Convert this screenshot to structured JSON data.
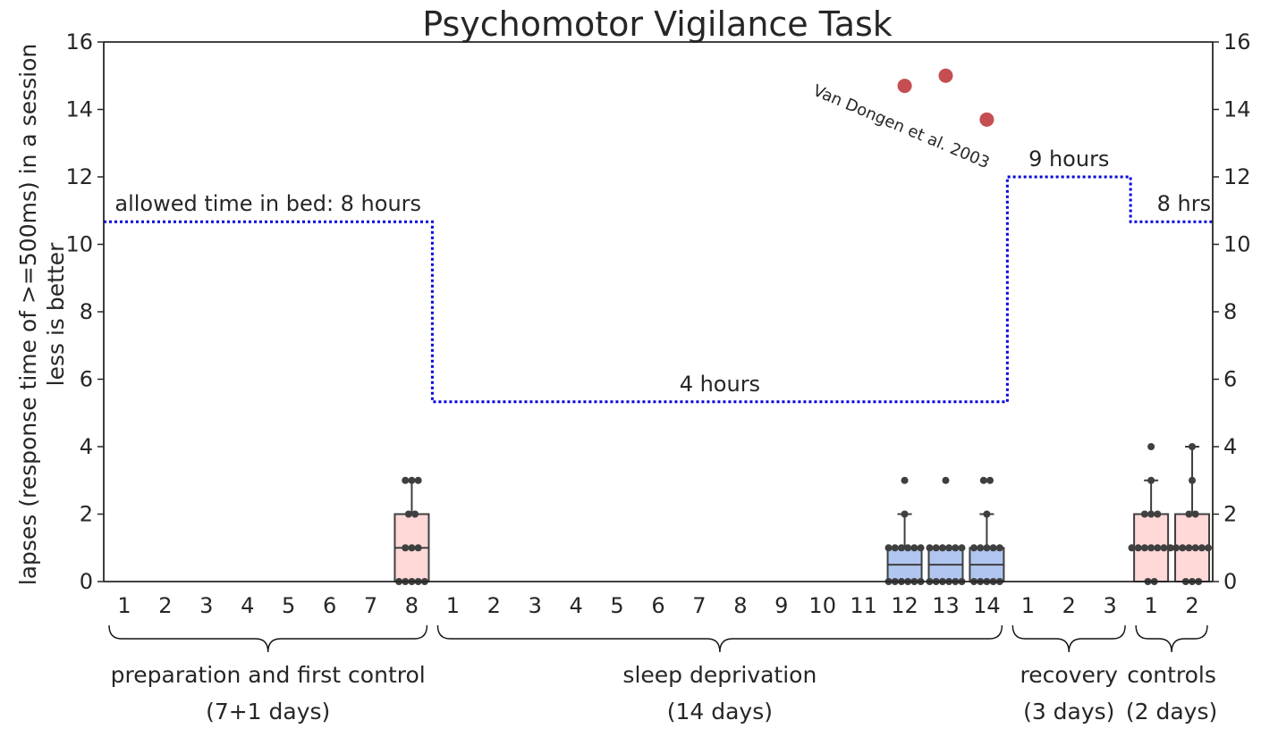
{
  "chart_data": {
    "type": "box",
    "title": "Psychomotor Vigilance Task",
    "ylabel_lines": [
      "lapses (response time of >=500ms) in a session",
      "less is better"
    ],
    "ylim": [
      0,
      16
    ],
    "yticks": [
      0,
      2,
      4,
      6,
      8,
      10,
      12,
      14,
      16
    ],
    "grid": false,
    "day_labels": [
      "1",
      "2",
      "3",
      "4",
      "5",
      "6",
      "7",
      "8",
      "1",
      "2",
      "3",
      "4",
      "5",
      "6",
      "7",
      "8",
      "9",
      "10",
      "11",
      "12",
      "13",
      "14",
      "1",
      "2",
      "3",
      "1",
      "2"
    ],
    "groups": [
      {
        "label": "preparation and first control",
        "sublabel": "(7+1 days)",
        "start": 0,
        "end": 7
      },
      {
        "label": "sleep deprivation",
        "sublabel": "(14 days)",
        "start": 8,
        "end": 21
      },
      {
        "label": "recovery",
        "sublabel": "(3 days)",
        "start": 22,
        "end": 24
      },
      {
        "label": "controls",
        "sublabel": "(2 days)",
        "start": 25,
        "end": 26
      }
    ],
    "boxes": [
      {
        "index": 7,
        "color": "#ffd8d8",
        "q1": 0,
        "median": 1,
        "q3": 2,
        "whisker_low": 0,
        "whisker_high": 3,
        "points": [
          0,
          0,
          0,
          0,
          0,
          1,
          1,
          1,
          2,
          2,
          3,
          3,
          3
        ]
      },
      {
        "index": 19,
        "color": "#b0c6f0",
        "q1": 0,
        "median": 0.5,
        "q3": 1,
        "whisker_low": 0,
        "whisker_high": 2,
        "points": [
          0,
          0,
          0,
          0,
          0,
          0,
          1,
          1,
          1,
          1,
          1,
          1,
          2,
          3
        ]
      },
      {
        "index": 20,
        "color": "#b0c6f0",
        "q1": 0,
        "median": 0.5,
        "q3": 1,
        "whisker_low": 0,
        "whisker_high": 1,
        "points": [
          0,
          0,
          0,
          0,
          0,
          0,
          1,
          1,
          1,
          1,
          1,
          1,
          3
        ]
      },
      {
        "index": 21,
        "color": "#b0c6f0",
        "q1": 0,
        "median": 0.5,
        "q3": 1,
        "whisker_low": 0,
        "whisker_high": 2,
        "points": [
          0,
          0,
          0,
          0,
          0,
          1,
          1,
          1,
          1,
          1,
          2,
          3,
          3
        ]
      },
      {
        "index": 25,
        "color": "#ffd8d8",
        "q1": 0,
        "median": 1,
        "q3": 2,
        "whisker_low": 0,
        "whisker_high": 3,
        "points": [
          0,
          0,
          1,
          1,
          1,
          1,
          1,
          1,
          1,
          2,
          2,
          2,
          3,
          4
        ]
      },
      {
        "index": 26,
        "color": "#ffd8d8",
        "q1": 0,
        "median": 1,
        "q3": 2,
        "whisker_low": 0,
        "whisker_high": 4,
        "points": [
          0,
          0,
          0,
          1,
          1,
          1,
          1,
          1,
          1,
          2,
          2,
          3,
          4
        ]
      }
    ],
    "bed_time_line": {
      "color": "#0000dd",
      "segments": [
        {
          "start": -0.5,
          "end": 7.5,
          "value": 10.67
        },
        {
          "start": 7.5,
          "end": 21.5,
          "value": 5.33
        },
        {
          "start": 21.5,
          "end": 24.5,
          "value": 12
        },
        {
          "start": 24.5,
          "end": 26.5,
          "value": 10.67
        }
      ],
      "labels": [
        {
          "text": "allowed time in bed: 8 hours",
          "x": 3.5,
          "y": 10.67
        },
        {
          "text": "4 hours",
          "x": 14.5,
          "y": 5.33
        },
        {
          "text": "9 hours",
          "x": 23,
          "y": 12
        },
        {
          "text": "8 hrs",
          "x": 25.8,
          "y": 10.67
        }
      ]
    },
    "reference": {
      "label": "Van Dongen et al. 2003",
      "color": "#c44e52",
      "points": [
        {
          "x": 19,
          "y": 14.7
        },
        {
          "x": 20,
          "y": 15.0
        },
        {
          "x": 21,
          "y": 13.7
        }
      ]
    }
  }
}
